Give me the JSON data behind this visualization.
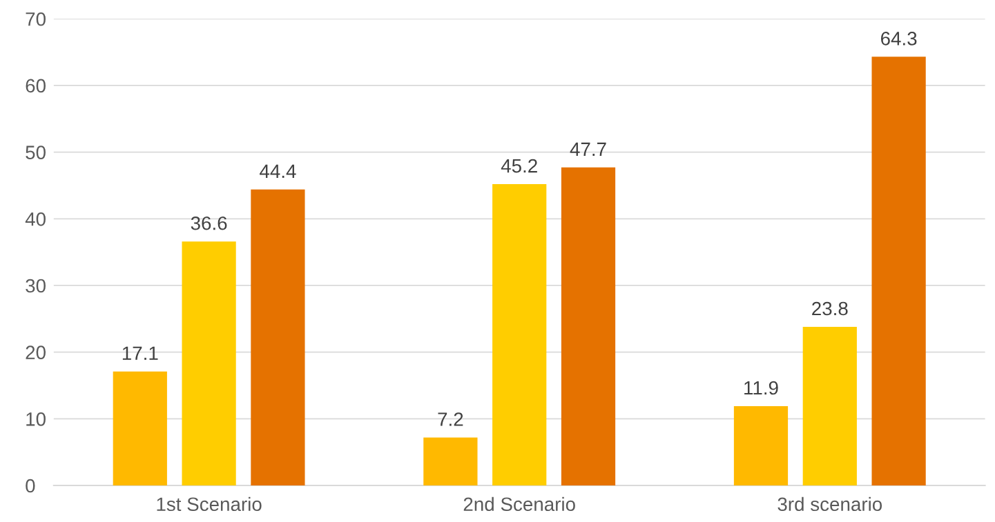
{
  "chart_data": {
    "type": "bar",
    "categories": [
      "1st Scenario",
      "2nd Scenario",
      "3rd scenario"
    ],
    "series": [
      {
        "color": "#ffb900",
        "values": [
          17.1,
          7.2,
          11.9
        ]
      },
      {
        "color": "#ffcd00",
        "values": [
          36.6,
          45.2,
          23.8
        ]
      },
      {
        "color": "#e57200",
        "values": [
          44.4,
          47.7,
          64.3
        ]
      }
    ],
    "ylim": [
      0,
      70
    ],
    "yticks": [
      0,
      10,
      20,
      30,
      40,
      50,
      60,
      70
    ],
    "grid": "y",
    "data_labels": true
  }
}
